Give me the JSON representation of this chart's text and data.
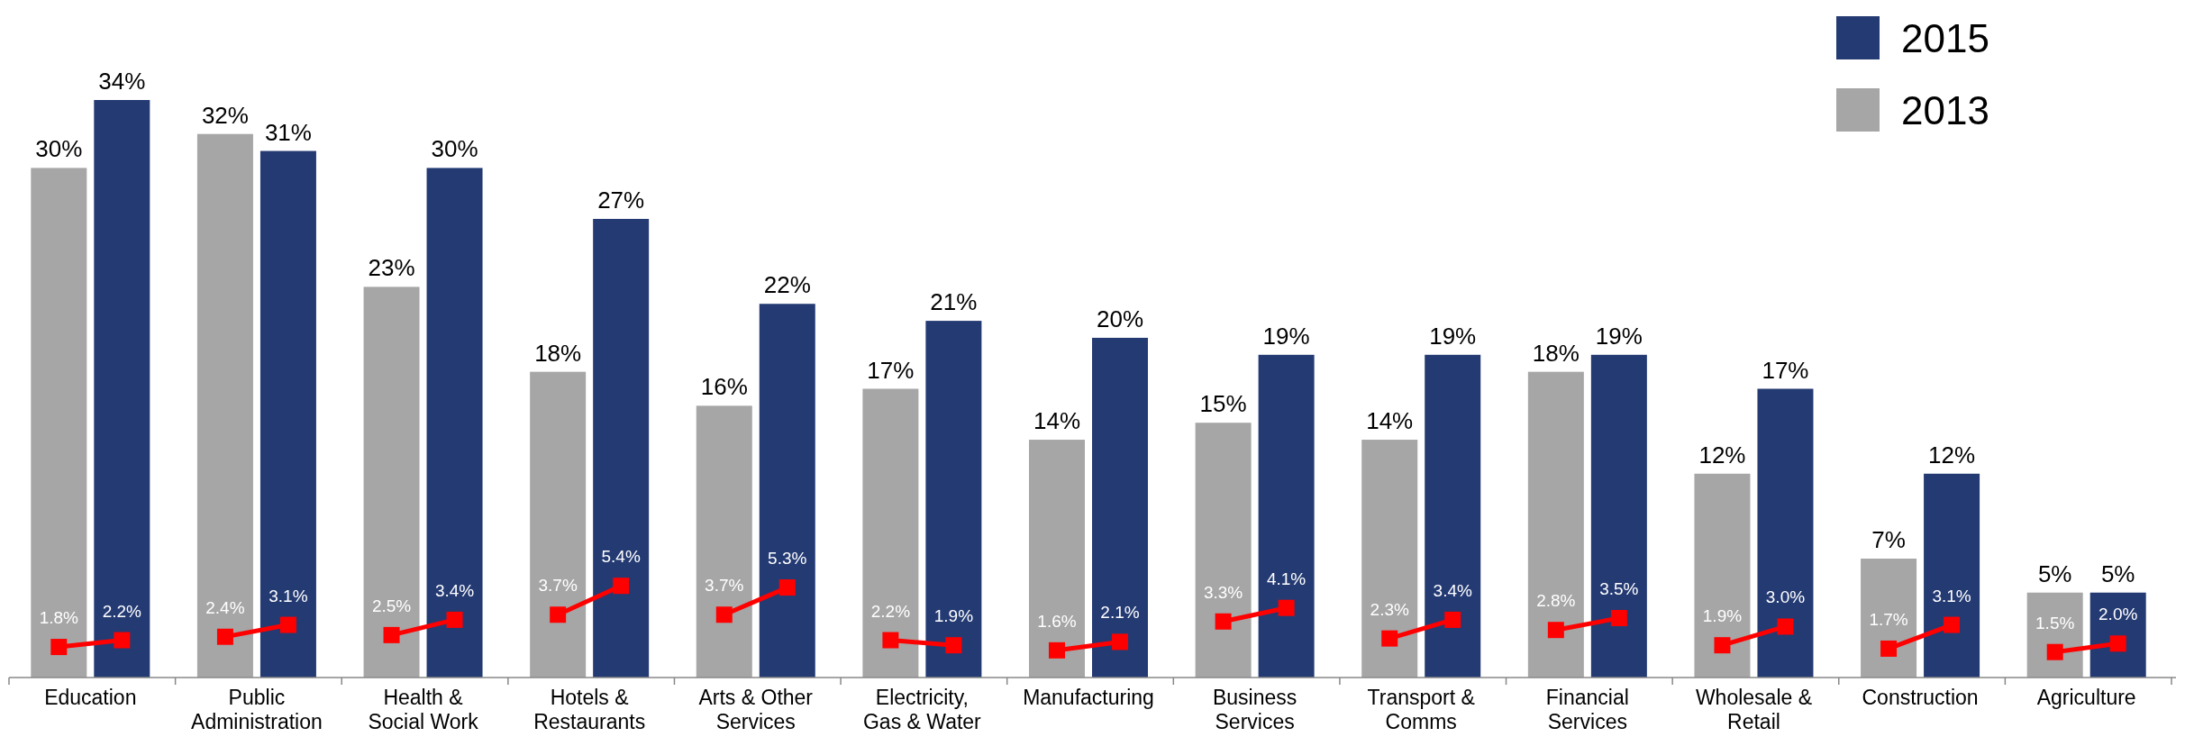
{
  "chart_data": {
    "type": "bar",
    "categories": [
      "Education",
      "Public Administration",
      "Health & Social Work",
      "Hotels & Restaurants",
      "Arts & Other Services",
      "Electricity, Gas & Water",
      "Manufacturing",
      "Business Services",
      "Transport & Comms",
      "Financial Services",
      "Wholesale & Retail",
      "Construction",
      "Agriculture"
    ],
    "legend": "top right",
    "data_labels": true,
    "marker": "square",
    "series": [
      {
        "name": "2013",
        "color": "#a6a6a6",
        "values": [
          30,
          32,
          23,
          18,
          16,
          17,
          14,
          15,
          14,
          18,
          12,
          7,
          5
        ],
        "value_labels": [
          "30%",
          "32%",
          "23%",
          "18%",
          "16%",
          "17%",
          "14%",
          "15%",
          "14%",
          "18%",
          "12%",
          "7%",
          "5%"
        ]
      },
      {
        "name": "2015",
        "color": "#243a73",
        "values": [
          34,
          31,
          30,
          27,
          22,
          21,
          20,
          19,
          19,
          19,
          17,
          12,
          5
        ],
        "value_labels": [
          "34%",
          "31%",
          "30%",
          "27%",
          "22%",
          "21%",
          "20%",
          "19%",
          "19%",
          "19%",
          "17%",
          "12%",
          "5%"
        ]
      },
      {
        "type": "scatter",
        "color": "#ff0000",
        "x": [
          "Education",
          "Public Administration",
          "Health & Social Work",
          "Hotels & Restaurants",
          "Arts & Other Services",
          "Electricity, Gas & Water",
          "Manufacturing",
          "Business Services",
          "Transport & Comms",
          "Financial Services",
          "Wholesale & Retail",
          "Construction",
          "Agriculture"
        ],
        "values": [
          1.8,
          2.4,
          2.5,
          3.7,
          3.7,
          2.2,
          1.6,
          3.3,
          2.3,
          2.8,
          1.9,
          1.7,
          1.5
        ],
        "value_labels": [
          "1.8%",
          "2.4%",
          "2.5%",
          "3.7%",
          "3.7%",
          "2.2%",
          "1.6%",
          "3.3%",
          "2.3%",
          "2.8%",
          "1.9%",
          "1.7%",
          "1.5%"
        ]
      },
      {
        "type": "scatter",
        "color": "#ff0000",
        "x": [
          "Education",
          "Public Administration",
          "Health & Social Work",
          "Hotels & Restaurants",
          "Arts & Other Services",
          "Electricity, Gas & Water",
          "Manufacturing",
          "Business Services",
          "Transport & Comms",
          "Financial Services",
          "Wholesale & Retail",
          "Construction",
          "Agriculture"
        ],
        "values": [
          2.2,
          3.1,
          3.4,
          5.4,
          5.3,
          1.9,
          2.1,
          4.1,
          3.4,
          3.5,
          3.0,
          3.1,
          2.0
        ],
        "value_labels": [
          "2.2%",
          "3.1%",
          "3.4%",
          "5.4%",
          "5.3%",
          "1.9%",
          "2.1%",
          "4.1%",
          "3.4%",
          "3.5%",
          "3.0%",
          "3.1%",
          "2.0%"
        ]
      }
    ]
  }
}
